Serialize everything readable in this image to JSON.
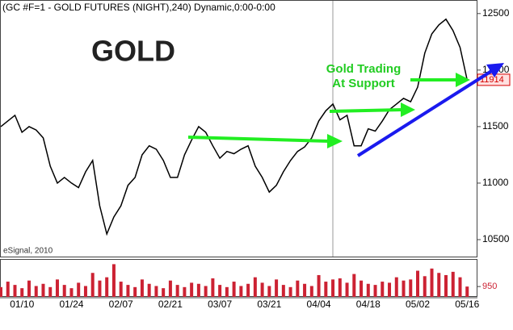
{
  "chart_data": {
    "type": "line",
    "title": "(GC #F=1 - GOLD FUTURES (NIGHT),240) Dynamic,0:00-0:00",
    "annotations": {
      "symbol": "GOLD",
      "support_line1": "Gold Trading",
      "support_line2": "At Support",
      "source": "eSignal, 2010"
    },
    "categories": [
      null,
      null,
      null,
      "01/10",
      null,
      null,
      null,
      null,
      null,
      null,
      "01/24",
      null,
      null,
      null,
      null,
      null,
      null,
      "02/07",
      null,
      null,
      null,
      null,
      null,
      null,
      "02/21",
      null,
      null,
      null,
      null,
      null,
      null,
      "03/07",
      null,
      null,
      null,
      null,
      null,
      null,
      "03/21",
      null,
      null,
      null,
      null,
      null,
      null,
      "04/04",
      null,
      null,
      null,
      null,
      null,
      null,
      "04/18",
      null,
      null,
      null,
      null,
      null,
      null,
      "05/02",
      null,
      null,
      null,
      null,
      null,
      null,
      "05/16"
    ],
    "values": [
      11500,
      11550,
      11600,
      11450,
      11500,
      11470,
      11400,
      11150,
      11000,
      11050,
      11000,
      10960,
      11100,
      11200,
      10800,
      10550,
      10700,
      10800,
      10980,
      11050,
      11250,
      11330,
      11300,
      11200,
      11050,
      11050,
      11250,
      11380,
      11500,
      11450,
      11330,
      11220,
      11280,
      11260,
      11300,
      11330,
      11150,
      11050,
      10920,
      10980,
      11100,
      11200,
      11280,
      11320,
      11400,
      11550,
      11640,
      11700,
      11560,
      11600,
      11330,
      11330,
      11480,
      11460,
      11550,
      11650,
      11700,
      11750,
      11720,
      11850,
      12150,
      12320,
      12400,
      12450,
      12350,
      12200,
      11914
    ],
    "color": "#000000",
    "ylim": [
      10350,
      12620
    ],
    "yticks": [
      10500,
      11000,
      11500,
      12000,
      12500
    ],
    "last_price_color": "#d40000",
    "volume": [
      900,
      1400,
      1100,
      800,
      1500,
      1000,
      1200,
      900,
      1600,
      1100,
      800,
      1300,
      1000,
      2200,
      1500,
      1800,
      3000,
      1400,
      1100,
      900,
      1600,
      1200,
      1000,
      800,
      1500,
      1100,
      900,
      1300,
      1200,
      1000,
      1700,
      1100,
      900,
      1400,
      1000,
      1200,
      1800,
      1300,
      1000,
      1600,
      1100,
      900,
      1500,
      1200,
      1000,
      2000,
      1400,
      1600,
      1700,
      1300,
      2100,
      1500,
      1200,
      1100,
      1400,
      1300,
      1800,
      1500,
      1600,
      2400,
      1900,
      2600,
      2200,
      2000,
      2300,
      1800,
      950
    ],
    "volume_color": "#cc2233",
    "volume_ylim": [
      0,
      3400
    ],
    "volume_yticks": [
      950
    ]
  }
}
